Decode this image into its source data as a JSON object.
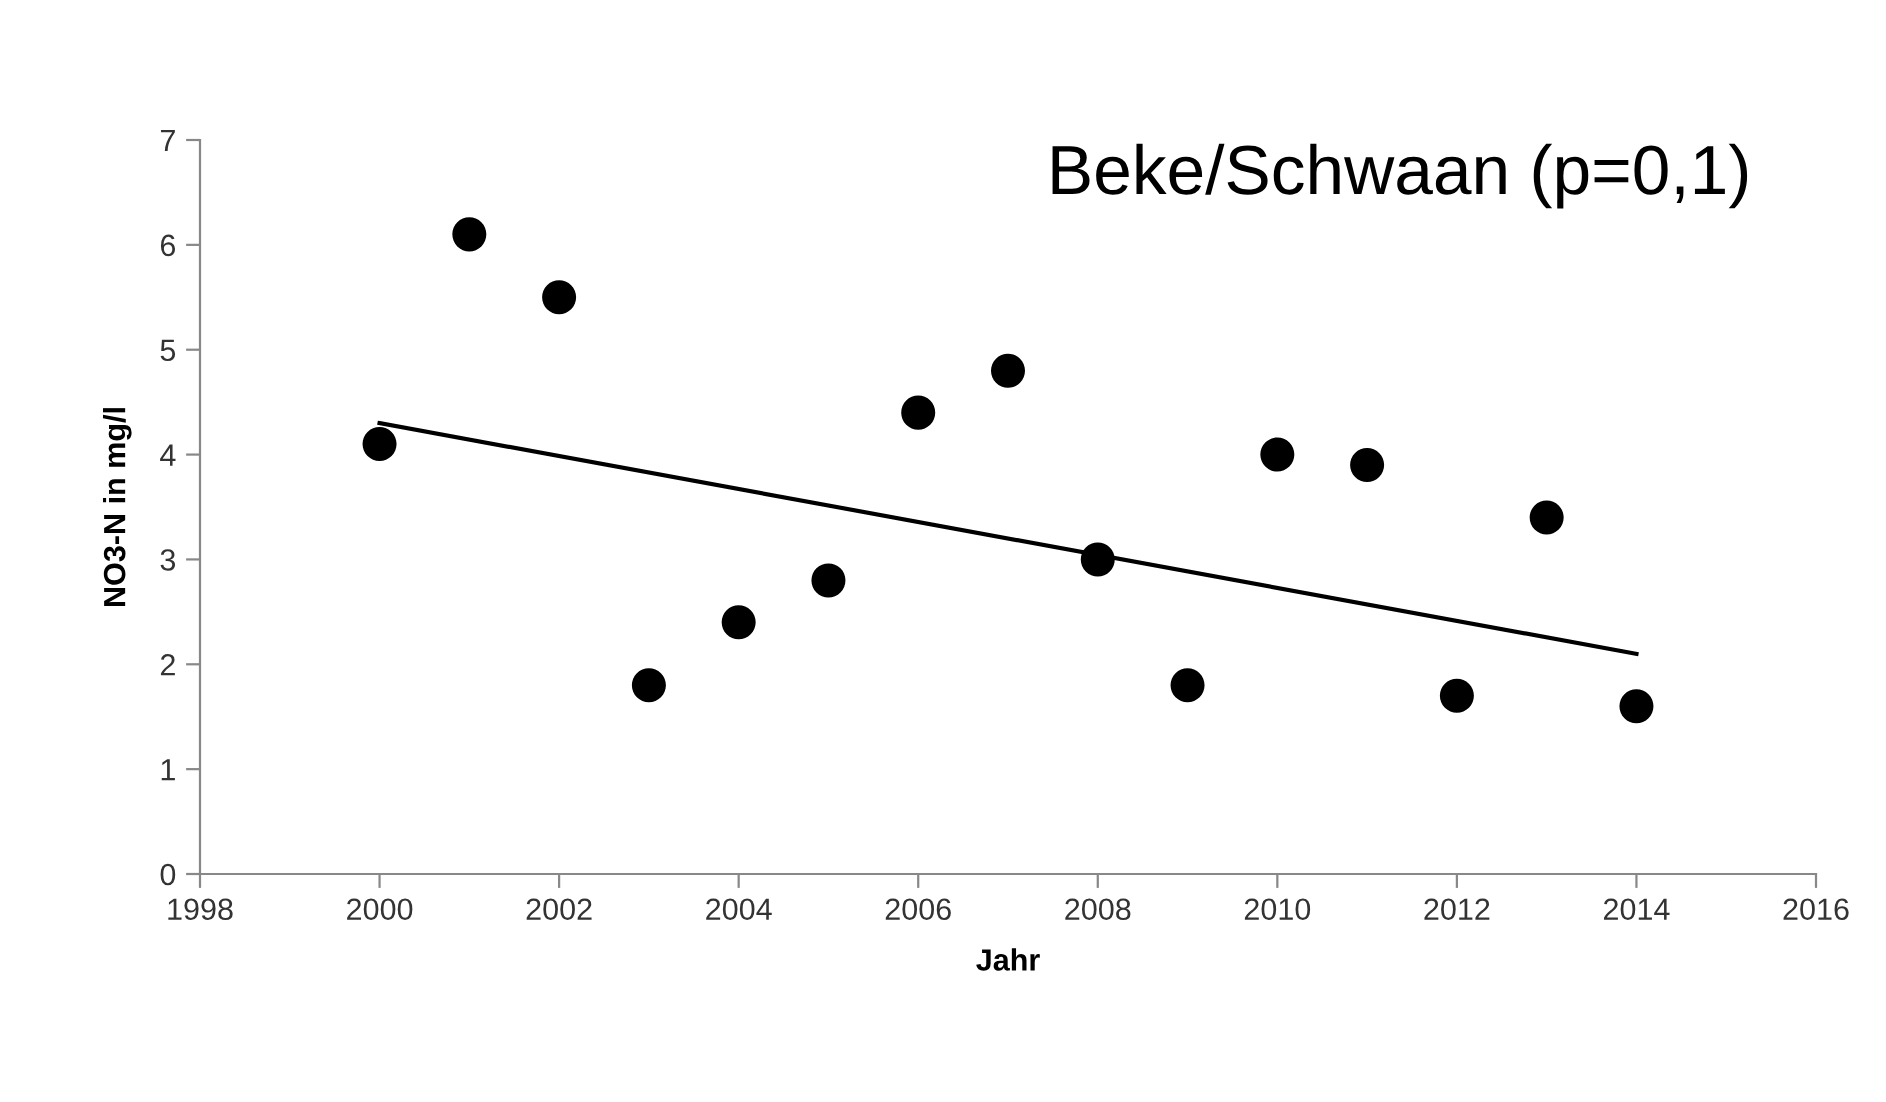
{
  "chart_data": {
    "type": "scatter",
    "title": "Beke/Schwaan (p=0,1)",
    "xlabel": "Jahr",
    "ylabel": "NO3-N in mg/l",
    "x": [
      2000,
      2001,
      2002,
      2003,
      2004,
      2005,
      2006,
      2007,
      2008,
      2009,
      2010,
      2011,
      2012,
      2013,
      2014
    ],
    "series": [
      {
        "color": "#000000",
        "marker": "circle",
        "values": [
          4.1,
          6.1,
          5.5,
          1.8,
          2.4,
          2.8,
          4.4,
          4.8,
          3.0,
          1.8,
          4.0,
          3.9,
          1.7,
          3.4,
          1.6
        ]
      },
      {
        "type": "line",
        "marker": "none",
        "color": "#000000",
        "x": [
          2000,
          2014
        ],
        "values": [
          4.3,
          2.1
        ]
      }
    ],
    "xlim": [
      1998,
      2016
    ],
    "xticks": [
      1998,
      2000,
      2002,
      2004,
      2006,
      2008,
      2010,
      2012,
      2014,
      2016
    ],
    "ylim": [
      0,
      7
    ],
    "yticks": [
      0,
      1,
      2,
      3,
      4,
      5,
      6,
      7
    ],
    "grid": false,
    "legend": false
  }
}
